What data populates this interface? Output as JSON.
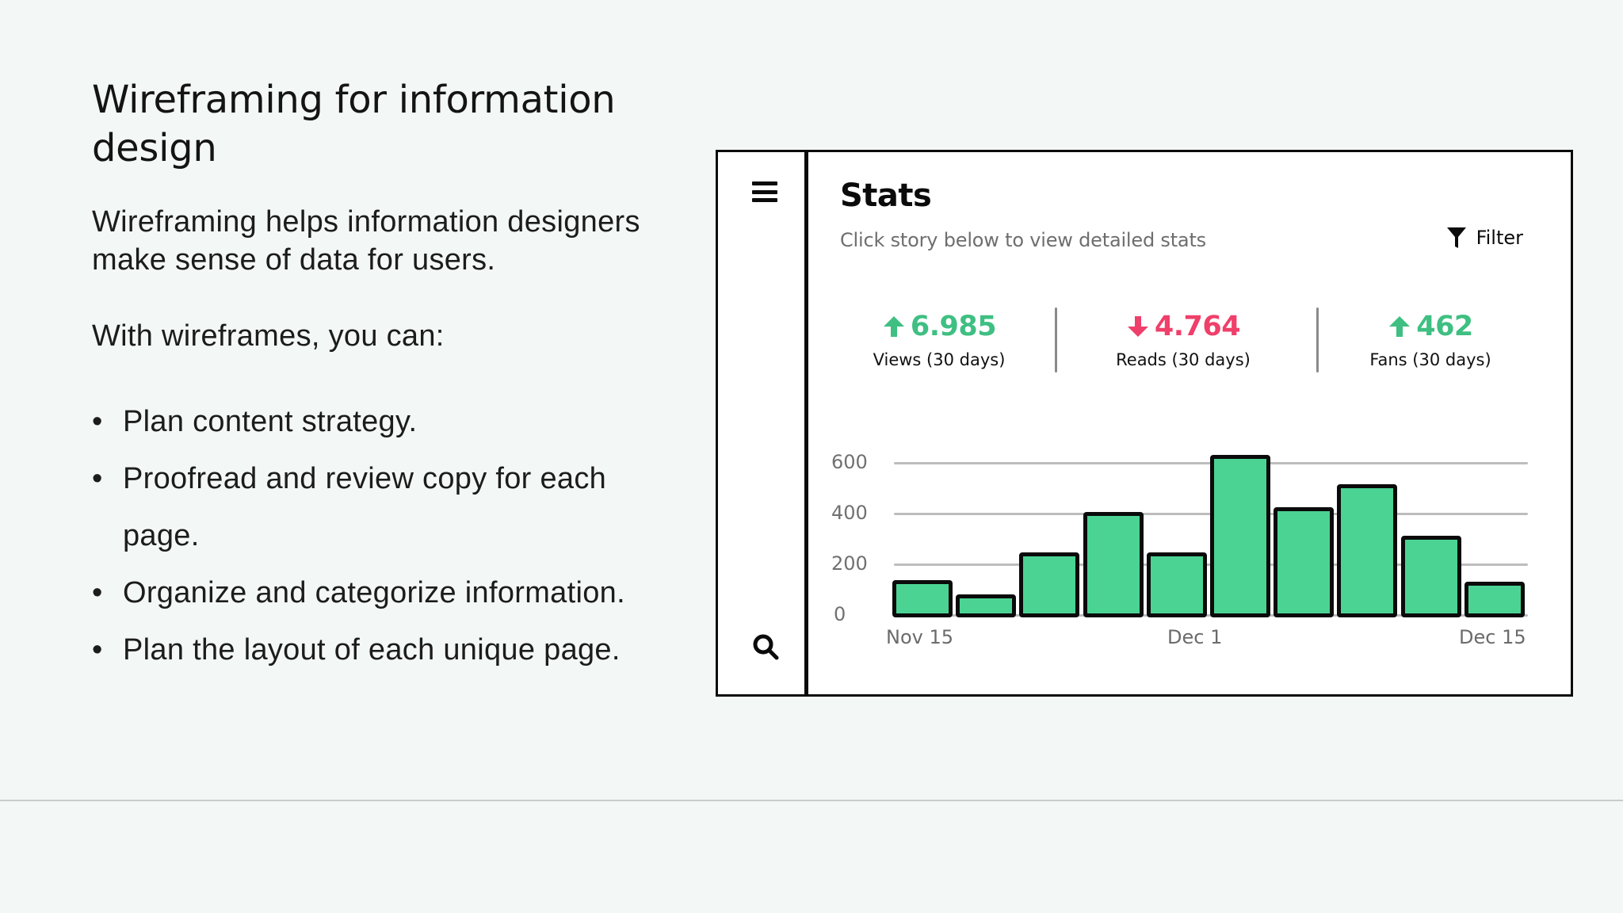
{
  "slide": {
    "title": "Wireframing for information design",
    "intro": "Wireframing helps information designers make sense of data for users.",
    "lead": "With wireframes, you can:",
    "bullets": [
      "Plan content strategy.",
      "Proofread and review copy for each page.",
      "Organize and categorize information.",
      "Plan the layout of each unique page."
    ],
    "bullet_glyph": "•"
  },
  "wireframe": {
    "sidebar": {
      "menu_icon": "hamburger-menu-icon",
      "search_icon": "search-icon"
    },
    "header": {
      "title": "Stats",
      "subtitle": "Click story below to view detailed stats",
      "filter_label": "Filter",
      "filter_icon": "funnel-icon"
    },
    "metrics": [
      {
        "value": "6.985",
        "label": "Views (30 days)",
        "trend": "up",
        "color": "#3fbf82"
      },
      {
        "value": "4.764",
        "label": "Reads (30 days)",
        "trend": "down",
        "color": "#ef3f6a"
      },
      {
        "value": "462",
        "label": "Fans (30 days)",
        "trend": "up",
        "color": "#3fbf82"
      }
    ]
  },
  "colors": {
    "background": "#f3f7f6",
    "bar_fill": "#4bd394",
    "up": "#3fbf82",
    "down": "#ef3f6a",
    "outline": "#0b0b0b"
  },
  "chart_data": {
    "type": "bar",
    "title": "",
    "xlabel": "",
    "ylabel": "",
    "categories": [
      "Nov 15",
      "",
      "",
      "",
      "",
      "Dec 1",
      "",
      "",
      "",
      "Dec 15"
    ],
    "x_tick_labels": [
      "Nov 15",
      "Dec 1",
      "Dec 15"
    ],
    "values": [
      130,
      75,
      240,
      400,
      240,
      625,
      420,
      510,
      305,
      125
    ],
    "y_ticks": [
      0,
      200,
      400,
      600
    ],
    "ylim": [
      0,
      650
    ],
    "grid": true,
    "legend": "none"
  }
}
